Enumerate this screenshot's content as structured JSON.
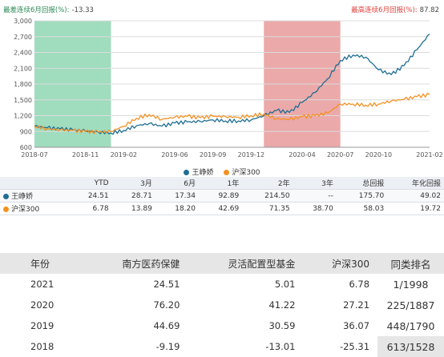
{
  "header": {
    "worst_label": "最差连续6月回报(%):",
    "worst_value": "-13.33",
    "best_label": "最高连续6月回报(%):",
    "best_value": "87.82"
  },
  "colors": {
    "fund": "#1f6e93",
    "index": "#f39122",
    "shade_worst": "#8fd6b3",
    "shade_best": "#e89a9a"
  },
  "chart_data": {
    "type": "line",
    "title": "",
    "xlabel": "",
    "ylabel": "",
    "y_ticks": [
      "3,000",
      "2,700",
      "2,400",
      "2,100",
      "1,800",
      "1,500",
      "1,200",
      "900",
      "600"
    ],
    "ylim": [
      600,
      3000
    ],
    "x_ticks": [
      "2018-07",
      "2018-11",
      "2019-02",
      "2019-06",
      "2019-09",
      "2019-12",
      "2020-04",
      "2020-07",
      "2020-10",
      "2021-02"
    ],
    "grid": true,
    "legend_position": "bottom",
    "shaded_ranges": [
      {
        "start": "2018-07",
        "end": "2019-01",
        "kind": "worst_6m"
      },
      {
        "start": "2020-01",
        "end": "2020-07",
        "kind": "best_6m"
      }
    ],
    "x": [
      "2018-07",
      "2018-08",
      "2018-09",
      "2018-10",
      "2018-11",
      "2018-12",
      "2019-01",
      "2019-02",
      "2019-03",
      "2019-04",
      "2019-05",
      "2019-06",
      "2019-07",
      "2019-08",
      "2019-09",
      "2019-10",
      "2019-11",
      "2019-12",
      "2020-01",
      "2020-02",
      "2020-03",
      "2020-04",
      "2020-05",
      "2020-06",
      "2020-07",
      "2020-08",
      "2020-09",
      "2020-10",
      "2020-11",
      "2020-12",
      "2021-01",
      "2021-02"
    ],
    "series": [
      {
        "name": "王峥娇",
        "values": [
          1000,
          970,
          950,
          930,
          910,
          890,
          870,
          920,
          1010,
          1050,
          1000,
          1060,
          1080,
          1090,
          1120,
          1100,
          1100,
          1120,
          1200,
          1300,
          1260,
          1450,
          1640,
          1900,
          2250,
          2350,
          2310,
          2070,
          1980,
          2150,
          2450,
          2750
        ]
      },
      {
        "name": "沪深300",
        "values": [
          1000,
          950,
          930,
          920,
          900,
          890,
          900,
          1000,
          1150,
          1220,
          1130,
          1170,
          1190,
          1160,
          1190,
          1180,
          1170,
          1200,
          1230,
          1140,
          1130,
          1180,
          1200,
          1250,
          1420,
          1420,
          1400,
          1420,
          1480,
          1510,
          1560,
          1600
        ]
      }
    ]
  },
  "perf_table": {
    "headers": [
      "",
      "YTD",
      "3月",
      "6月",
      "1年",
      "2年",
      "3年",
      "总回报",
      "年化回报"
    ],
    "rows": [
      {
        "name": "王峥娇",
        "cells": [
          "24.51",
          "28.71",
          "17.34",
          "92.89",
          "214.50",
          "--",
          "175.70",
          "49.02"
        ]
      },
      {
        "name": "沪深300",
        "cells": [
          "6.78",
          "13.89",
          "18.20",
          "42.69",
          "71.35",
          "38.70",
          "58.03",
          "19.72"
        ]
      }
    ]
  },
  "year_table": {
    "headers": [
      "年份",
      "南方医药保健",
      "灵活配置型基金",
      "沪深300",
      "同类排名"
    ],
    "rows": [
      [
        "2021",
        "24.51",
        "5.01",
        "6.78",
        "1/1998"
      ],
      [
        "2020",
        "76.20",
        "41.22",
        "27.21",
        "225/1887"
      ],
      [
        "2019",
        "44.69",
        "30.59",
        "36.07",
        "448/1790"
      ],
      [
        "2018",
        "-9.19",
        "-13.01",
        "-25.31",
        "613/1528"
      ]
    ]
  }
}
